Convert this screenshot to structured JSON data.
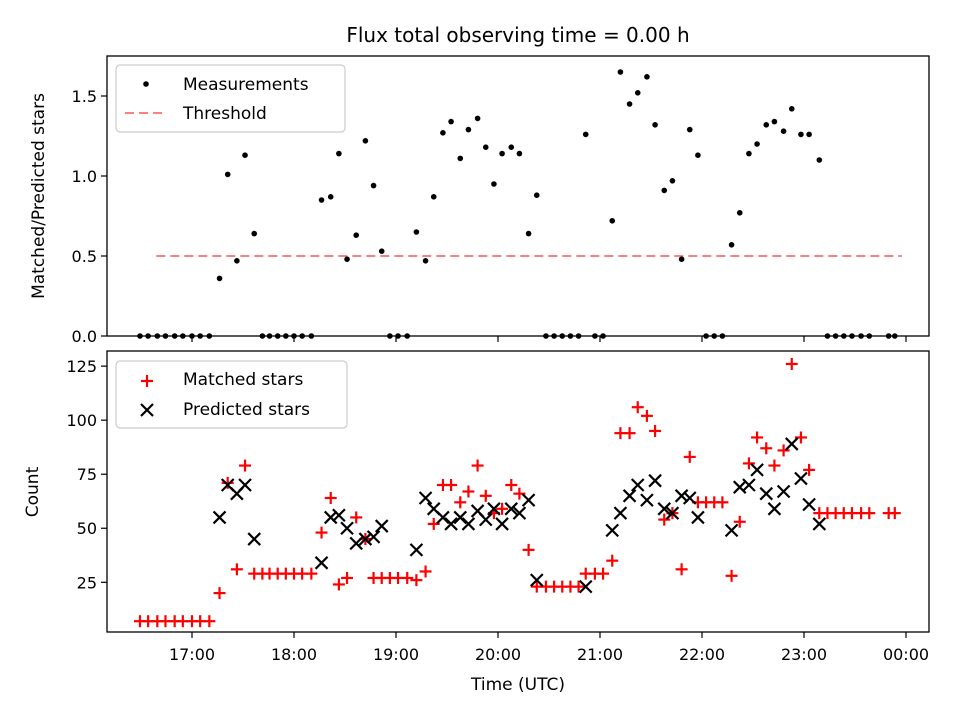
{
  "chart_data": [
    {
      "type": "scatter",
      "title": "Flux total observing time = 0.00 h",
      "xlabel": "",
      "ylabel": "Matched/Predicted stars",
      "xlim": [
        16.15,
        24.2
      ],
      "ylim": [
        0,
        1.75
      ],
      "yticks": [
        0.0,
        0.5,
        1.0,
        1.5
      ],
      "ytick_labels": [
        "0.0",
        "0.5",
        "1.0",
        "1.5"
      ],
      "xticks": [
        17,
        18,
        19,
        20,
        21,
        22,
        23,
        24
      ],
      "xtick_labels": [
        "",
        "",
        "",
        "",
        "",
        "",
        "",
        ""
      ],
      "legend": {
        "placement": "top-left",
        "entries": [
          "Measurements",
          "Threshold"
        ]
      },
      "threshold": {
        "name": "Threshold",
        "value": 0.5,
        "x_range": [
          16.65,
          23.96
        ],
        "color": "#ff7f7f",
        "style": "dashed"
      },
      "series": [
        {
          "name": "Measurements",
          "color": "#000000",
          "marker": "dot",
          "x": [
            16.49,
            16.57,
            16.66,
            16.74,
            16.83,
            16.91,
            17.0,
            17.08,
            17.17,
            17.27,
            17.35,
            17.44,
            17.52,
            17.61,
            17.69,
            17.76,
            17.84,
            17.92,
            18.0,
            18.08,
            18.17,
            18.27,
            18.36,
            18.44,
            18.52,
            18.61,
            18.7,
            18.78,
            18.86,
            18.94,
            19.02,
            19.11,
            19.2,
            19.29,
            19.37,
            19.46,
            19.54,
            19.63,
            19.71,
            19.8,
            19.88,
            19.96,
            20.04,
            20.13,
            20.21,
            20.3,
            20.38,
            20.47,
            20.55,
            20.63,
            20.71,
            20.79,
            20.86,
            20.95,
            21.03,
            21.12,
            21.2,
            21.29,
            21.37,
            21.46,
            21.54,
            21.63,
            21.71,
            21.8,
            21.88,
            21.96,
            22.04,
            22.12,
            22.2,
            22.29,
            22.37,
            22.46,
            22.54,
            22.63,
            22.71,
            22.8,
            22.88,
            22.97,
            23.05,
            23.15,
            23.23,
            23.31,
            23.39,
            23.47,
            23.56,
            23.64,
            23.83,
            23.89
          ],
          "y": [
            0,
            0,
            0,
            0,
            0,
            0,
            0,
            0,
            0,
            0.36,
            1.01,
            0.47,
            1.13,
            0.64,
            0,
            0,
            0,
            0,
            0,
            0,
            0,
            0.85,
            0.87,
            1.14,
            0.48,
            0.63,
            1.22,
            0.94,
            0.53,
            0,
            0,
            0,
            0.65,
            0.47,
            0.87,
            1.27,
            1.34,
            1.11,
            1.29,
            1.36,
            1.18,
            0.95,
            1.14,
            1.18,
            1.14,
            0.64,
            0.88,
            0,
            0,
            0,
            0,
            0,
            1.26,
            0,
            0,
            0.72,
            1.65,
            1.45,
            1.52,
            1.62,
            1.32,
            0.91,
            0.97,
            0.48,
            1.29,
            1.13,
            0,
            0,
            0,
            0.57,
            0.77,
            1.14,
            1.2,
            1.32,
            1.34,
            1.28,
            1.42,
            1.26,
            1.26,
            1.1,
            0,
            0,
            0,
            0,
            0,
            0,
            0,
            0
          ]
        }
      ]
    },
    {
      "type": "scatter",
      "title": "",
      "xlabel": "Time (UTC)",
      "ylabel": "Count",
      "xlim": [
        16.15,
        24.2
      ],
      "ylim": [
        2,
        132
      ],
      "yticks": [
        25,
        50,
        75,
        100,
        125
      ],
      "ytick_labels": [
        "25",
        "50",
        "75",
        "100",
        "125"
      ],
      "xticks": [
        17,
        18,
        19,
        20,
        21,
        22,
        23,
        24
      ],
      "xtick_labels": [
        "17:00",
        "18:00",
        "19:00",
        "20:00",
        "21:00",
        "22:00",
        "23:00",
        "00:00"
      ],
      "legend": {
        "placement": "top-left",
        "entries": [
          "Matched stars",
          "Predicted stars"
        ]
      },
      "series": [
        {
          "name": "Matched stars",
          "color": "#ff0000",
          "marker": "plus",
          "x": [
            16.49,
            16.57,
            16.66,
            16.74,
            16.83,
            16.91,
            17.0,
            17.08,
            17.17,
            17.27,
            17.35,
            17.44,
            17.52,
            17.61,
            17.69,
            17.76,
            17.84,
            17.92,
            18.0,
            18.08,
            18.17,
            18.27,
            18.36,
            18.44,
            18.52,
            18.61,
            18.7,
            18.78,
            18.86,
            18.94,
            19.02,
            19.11,
            19.2,
            19.29,
            19.37,
            19.46,
            19.54,
            19.63,
            19.71,
            19.8,
            19.88,
            19.96,
            20.04,
            20.13,
            20.21,
            20.3,
            20.38,
            20.47,
            20.55,
            20.63,
            20.71,
            20.79,
            20.86,
            20.95,
            21.03,
            21.12,
            21.2,
            21.29,
            21.37,
            21.46,
            21.54,
            21.63,
            21.71,
            21.8,
            21.88,
            21.96,
            22.04,
            22.12,
            22.2,
            22.29,
            22.37,
            22.46,
            22.54,
            22.63,
            22.71,
            22.8,
            22.88,
            22.97,
            23.05,
            23.15,
            23.23,
            23.31,
            23.39,
            23.47,
            23.56,
            23.64,
            23.83,
            23.89
          ],
          "y": [
            7,
            7,
            7,
            7,
            7,
            7,
            7,
            7,
            7,
            20,
            71,
            31,
            79,
            29,
            29,
            29,
            29,
            29,
            29,
            29,
            29,
            48,
            64,
            24,
            27,
            55,
            45,
            27,
            27,
            27,
            27,
            27,
            26,
            30,
            52,
            70,
            70,
            62,
            67,
            79,
            65,
            57,
            59,
            70,
            66,
            40,
            23,
            23,
            23,
            23,
            23,
            23,
            29,
            29,
            29,
            35,
            94,
            94,
            106,
            102,
            95,
            54,
            57,
            31,
            83,
            62,
            62,
            62,
            62,
            28,
            53,
            80,
            92,
            87,
            79,
            86,
            126,
            92,
            77,
            57,
            57,
            57,
            57,
            57,
            57,
            57,
            57,
            57
          ]
        },
        {
          "name": "Predicted stars",
          "color": "#000000",
          "marker": "x",
          "x": [
            17.27,
            17.35,
            17.44,
            17.52,
            17.61,
            18.27,
            18.36,
            18.44,
            18.52,
            18.61,
            18.7,
            18.78,
            18.86,
            19.2,
            19.29,
            19.37,
            19.46,
            19.54,
            19.63,
            19.71,
            19.8,
            19.88,
            19.96,
            20.04,
            20.13,
            20.21,
            20.3,
            20.38,
            20.86,
            21.12,
            21.2,
            21.29,
            21.37,
            21.46,
            21.54,
            21.63,
            21.71,
            21.8,
            21.88,
            21.96,
            22.29,
            22.37,
            22.46,
            22.54,
            22.63,
            22.71,
            22.8,
            22.88,
            22.97,
            23.05,
            23.15
          ],
          "y": [
            55,
            70,
            66,
            70,
            45,
            34,
            55,
            56,
            50,
            43,
            45,
            46,
            51,
            40,
            64,
            59,
            55,
            52,
            55,
            52,
            58,
            54,
            59,
            52,
            59,
            57,
            63,
            26,
            23,
            49,
            57,
            65,
            70,
            63,
            72,
            59,
            57,
            65,
            64,
            55,
            49,
            69,
            70,
            77,
            66,
            59,
            67,
            89,
            73,
            61,
            52
          ]
        }
      ]
    }
  ]
}
